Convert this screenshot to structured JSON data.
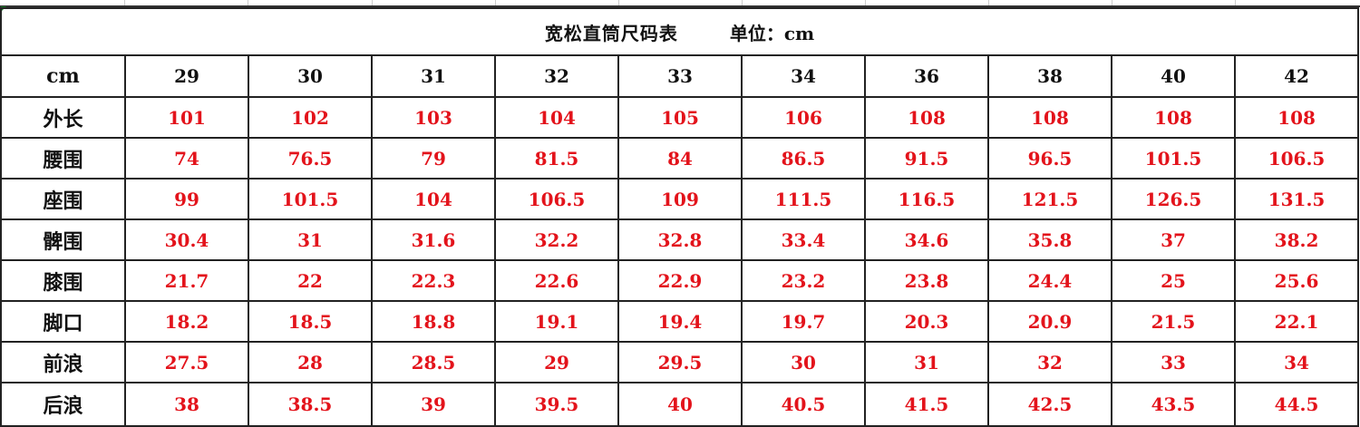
{
  "title": "宽松直筒尺码表",
  "unit_label": "单位：cm",
  "header": {
    "label": "cm",
    "sizes": [
      "29",
      "30",
      "31",
      "32",
      "33",
      "34",
      "36",
      "38",
      "40",
      "42"
    ]
  },
  "rows": [
    {
      "label": "外长",
      "values": [
        "101",
        "102",
        "103",
        "104",
        "105",
        "106",
        "108",
        "108",
        "108",
        "108"
      ]
    },
    {
      "label": "腰围",
      "values": [
        "74",
        "76.5",
        "79",
        "81.5",
        "84",
        "86.5",
        "91.5",
        "96.5",
        "101.5",
        "106.5"
      ]
    },
    {
      "label": "座围",
      "values": [
        "99",
        "101.5",
        "104",
        "106.5",
        "109",
        "111.5",
        "116.5",
        "121.5",
        "126.5",
        "131.5"
      ]
    },
    {
      "label": "髀围",
      "values": [
        "30.4",
        "31",
        "31.6",
        "32.2",
        "32.8",
        "33.4",
        "34.6",
        "35.8",
        "37",
        "38.2"
      ]
    },
    {
      "label": "膝围",
      "values": [
        "21.7",
        "22",
        "22.3",
        "22.6",
        "22.9",
        "23.2",
        "23.8",
        "24.4",
        "25",
        "25.6"
      ]
    },
    {
      "label": "脚口",
      "values": [
        "18.2",
        "18.5",
        "18.8",
        "19.1",
        "19.4",
        "19.7",
        "20.3",
        "20.9",
        "21.5",
        "22.1"
      ]
    },
    {
      "label": "前浪",
      "values": [
        "27.5",
        "28",
        "28.5",
        "29",
        "29.5",
        "30",
        "31",
        "32",
        "33",
        "34"
      ]
    },
    {
      "label": "后浪",
      "values": [
        "38",
        "38.5",
        "39",
        "39.5",
        "40",
        "40.5",
        "41.5",
        "42.5",
        "43.5",
        "44.5"
      ]
    }
  ],
  "colors": {
    "value_text": "#e3131b",
    "label_text": "#111111",
    "grid": "#222222"
  }
}
